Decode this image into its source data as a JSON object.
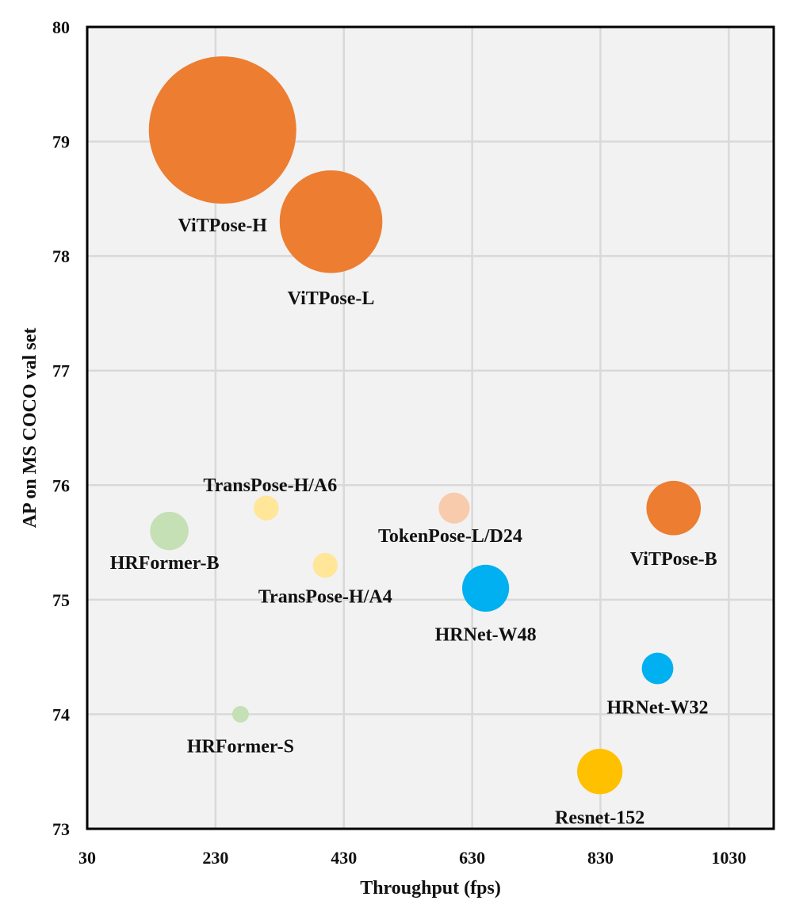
{
  "chart_data": {
    "type": "scatter",
    "title": "",
    "xlabel": "Throughput (fps)",
    "ylabel": "AP on MS COCO val set",
    "xlim": [
      30,
      1100
    ],
    "ylim": [
      73,
      80
    ],
    "xticks": [
      30,
      230,
      430,
      630,
      830,
      1030
    ],
    "yticks": [
      73,
      74,
      75,
      76,
      77,
      78,
      79,
      80
    ],
    "grid": true,
    "points": [
      {
        "name": "ViTPose-H",
        "x": 241,
        "y": 79.1,
        "size": 632,
        "color": "#ED7D31"
      },
      {
        "name": "ViTPose-L",
        "x": 410,
        "y": 78.3,
        "size": 307,
        "color": "#ED7D31"
      },
      {
        "name": "ViTPose-B",
        "x": 944,
        "y": 75.8,
        "size": 86,
        "color": "#ED7D31"
      },
      {
        "name": "TransPose-H/A6",
        "x": 309,
        "y": 75.8,
        "size": 18,
        "color": "#FFE699"
      },
      {
        "name": "TransPose-H/A4",
        "x": 401,
        "y": 75.3,
        "size": 18,
        "color": "#FFE699"
      },
      {
        "name": "TokenPose-L/D24",
        "x": 602,
        "y": 75.8,
        "size": 28,
        "color": "#F8CBAD"
      },
      {
        "name": "HRFormer-B",
        "x": 158,
        "y": 75.6,
        "size": 43,
        "color": "#C5E0B4"
      },
      {
        "name": "HRFormer-S",
        "x": 269,
        "y": 74.0,
        "size": 8,
        "color": "#C5E0B4"
      },
      {
        "name": "HRNet-W48",
        "x": 651,
        "y": 75.1,
        "size": 64,
        "color": "#00B0F0"
      },
      {
        "name": "HRNet-W32",
        "x": 919,
        "y": 74.4,
        "size": 29,
        "color": "#00B0F0"
      },
      {
        "name": "Resnet-152",
        "x": 829,
        "y": 73.5,
        "size": 60,
        "color": "#FFC000"
      }
    ]
  }
}
